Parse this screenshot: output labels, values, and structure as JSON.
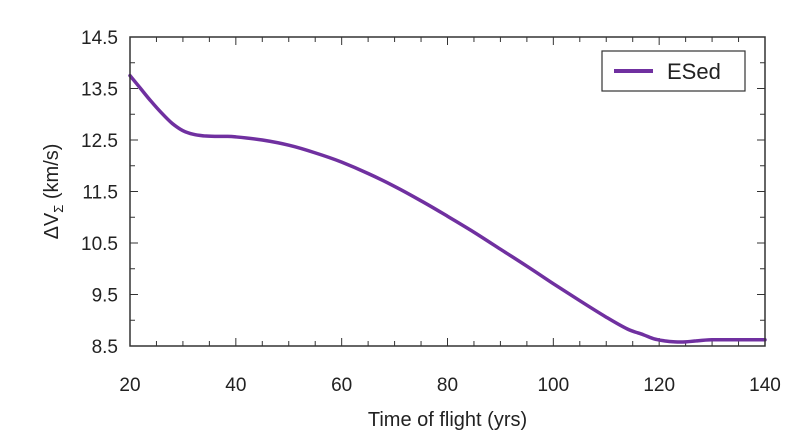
{
  "chart_data": {
    "type": "line",
    "title": "",
    "xlabel": "Time of flight (yrs)",
    "ylabel": "ΔVΣ (km/s)",
    "ylabel_parts": {
      "main": "ΔV",
      "sub": "Σ",
      "unit": " (km/s)"
    },
    "xlim": [
      20,
      140
    ],
    "ylim": [
      8.5,
      14.5
    ],
    "xticks": [
      20,
      40,
      60,
      80,
      100,
      120,
      140
    ],
    "yticks": [
      8.5,
      9.5,
      10.5,
      11.5,
      12.5,
      13.5,
      14.5
    ],
    "ytick_labels": [
      "8.5",
      "9.5",
      "10.5",
      "11.5",
      "12.5",
      "13.5",
      "14.5"
    ],
    "xtick_labels": [
      "20",
      "40",
      "60",
      "80",
      "100",
      "120",
      "140"
    ],
    "legend_position": "top-right",
    "grid": false,
    "series": [
      {
        "name": "ESed",
        "color": "#7030a0",
        "x": [
          20,
          22,
          24,
          26,
          28,
          30,
          32,
          34,
          36,
          38,
          40,
          45,
          50,
          55,
          60,
          65,
          70,
          75,
          80,
          85,
          90,
          95,
          100,
          105,
          110,
          114,
          117,
          119,
          121,
          123,
          125,
          127,
          130,
          135,
          140
        ],
        "y": [
          13.75,
          13.5,
          13.25,
          13.02,
          12.82,
          12.68,
          12.61,
          12.58,
          12.57,
          12.57,
          12.56,
          12.5,
          12.4,
          12.25,
          12.07,
          11.85,
          11.6,
          11.32,
          11.02,
          10.71,
          10.38,
          10.05,
          9.71,
          9.38,
          9.06,
          8.83,
          8.72,
          8.64,
          8.6,
          8.58,
          8.58,
          8.6,
          8.62,
          8.62,
          8.62
        ]
      }
    ]
  }
}
